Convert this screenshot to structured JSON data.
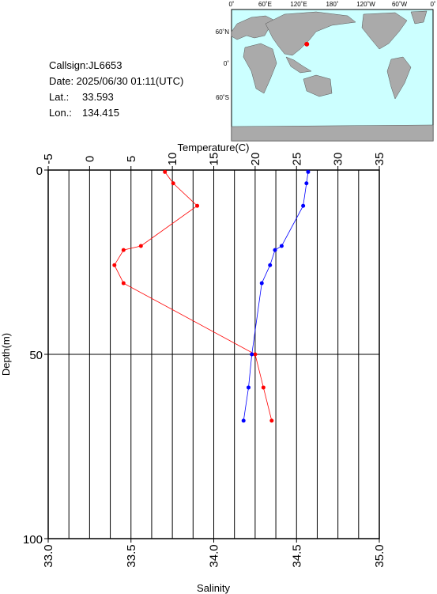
{
  "info": {
    "callsign": "Callsign:JL6653",
    "date": "Date:  2025/06/30 01:11(UTC)",
    "lat_label": "Lat.:",
    "lat": 33.593,
    "lon_label": "Lon.:",
    "lon": 134.415
  },
  "map": {
    "top_labels": [
      "0˚",
      "60˚E",
      "120˚E",
      "180˚",
      "120˚W",
      "60˚W",
      "0˚"
    ],
    "left_labels": [
      "60˚N",
      "0˚",
      "60˚S"
    ]
  },
  "chart_data": {
    "type": "line",
    "x_label_top": "Temperature(C)",
    "x_label_bottom": "Salinity",
    "y_label": "Depth(m)",
    "depth": [
      0.5,
      3.6,
      9.7,
      20.6,
      21.7,
      25.8,
      30.7,
      50,
      59,
      68
    ],
    "series": [
      {
        "name": "Temperature",
        "color": "#ff0000",
        "axis": "top",
        "values": [
          9.1,
          10.1,
          13.0,
          6.2,
          4.1,
          3.0,
          4.1,
          20.0,
          21.0,
          22.0
        ]
      },
      {
        "name": "Salinity",
        "color": "#0000ff",
        "axis": "bottom",
        "values": [
          34.57,
          34.56,
          34.54,
          34.41,
          34.37,
          34.34,
          34.29,
          34.23,
          34.21,
          34.18
        ]
      }
    ],
    "toplim": [
      -5,
      35
    ],
    "topticks": [
      -5,
      0,
      5,
      10,
      15,
      20,
      25,
      30,
      35
    ],
    "bottomlim": [
      33,
      35
    ],
    "bottomticks": [
      {
        "value": 33,
        "label": "33.0"
      },
      {
        "value": 33.5,
        "label": "33.5"
      },
      {
        "value": 34,
        "label": "34.0"
      },
      {
        "value": 34.5,
        "label": "34.5"
      },
      {
        "value": 35,
        "label": "35.0"
      }
    ],
    "ylim": [
      0,
      100
    ],
    "yticks": [
      0,
      50,
      100
    ],
    "grid": true
  }
}
